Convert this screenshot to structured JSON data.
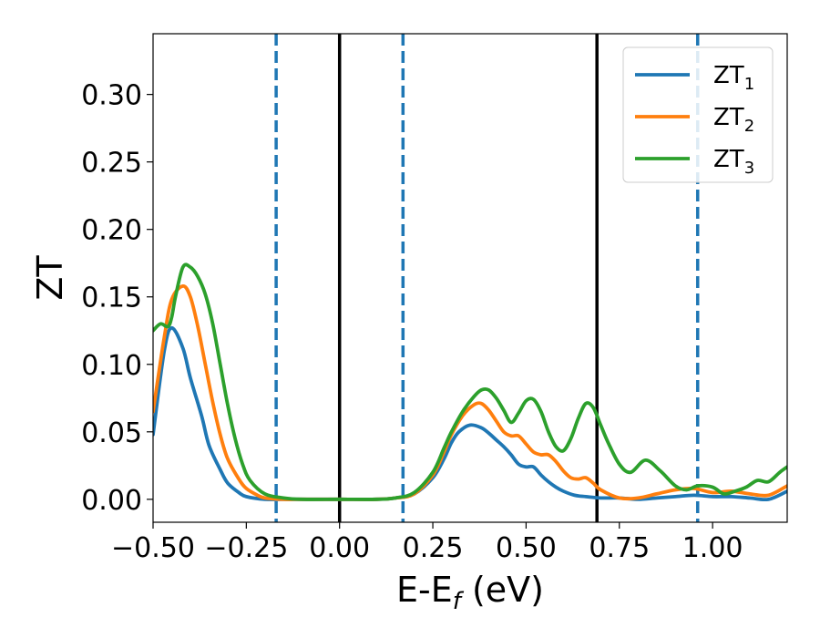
{
  "chart_data": {
    "type": "line",
    "xlabel_main": "E-E",
    "xlabel_sub": "f",
    "xlabel_unit": " (eV)",
    "ylabel": "ZT",
    "xlim": [
      -0.5,
      1.2
    ],
    "ylim": [
      -0.017,
      0.345
    ],
    "x_ticks": [
      -0.5,
      -0.25,
      0.0,
      0.25,
      0.5,
      0.75,
      1.0
    ],
    "x_tick_labels": [
      "−0.50",
      "−0.25",
      "0.00",
      "0.25",
      "0.50",
      "0.75",
      "1.00"
    ],
    "y_ticks": [
      0.0,
      0.05,
      0.1,
      0.15,
      0.2,
      0.25,
      0.3
    ],
    "y_tick_labels": [
      "0.00",
      "0.05",
      "0.10",
      "0.15",
      "0.20",
      "0.25",
      "0.30"
    ],
    "grid": false,
    "legend_position": "top-right",
    "series": [
      {
        "name": "ZT",
        "sub": "1",
        "color": "#1f77b4",
        "x": [
          -0.5,
          -0.47,
          -0.45,
          -0.42,
          -0.4,
          -0.37,
          -0.35,
          -0.32,
          -0.3,
          -0.27,
          -0.25,
          -0.2,
          -0.15,
          -0.1,
          0.0,
          0.1,
          0.15,
          0.2,
          0.25,
          0.28,
          0.3,
          0.32,
          0.35,
          0.38,
          0.4,
          0.42,
          0.44,
          0.46,
          0.48,
          0.5,
          0.52,
          0.54,
          0.56,
          0.58,
          0.6,
          0.63,
          0.66,
          0.7,
          0.75,
          0.8,
          0.85,
          0.9,
          0.95,
          1.0,
          1.05,
          1.1,
          1.15,
          1.2
        ],
        "y": [
          0.048,
          0.11,
          0.127,
          0.112,
          0.09,
          0.062,
          0.04,
          0.022,
          0.012,
          0.005,
          0.002,
          0.0,
          0.0,
          0.0,
          0.0,
          0.0,
          0.001,
          0.004,
          0.016,
          0.03,
          0.042,
          0.05,
          0.055,
          0.053,
          0.049,
          0.044,
          0.039,
          0.033,
          0.026,
          0.024,
          0.024,
          0.018,
          0.013,
          0.009,
          0.006,
          0.003,
          0.002,
          0.001,
          0.001,
          0.0,
          0.001,
          0.002,
          0.003,
          0.002,
          0.002,
          0.001,
          0.0,
          0.006
        ]
      },
      {
        "name": "ZT",
        "sub": "2",
        "color": "#ff7f0e",
        "x": [
          -0.5,
          -0.47,
          -0.45,
          -0.42,
          -0.4,
          -0.38,
          -0.36,
          -0.34,
          -0.32,
          -0.3,
          -0.27,
          -0.25,
          -0.22,
          -0.2,
          -0.15,
          -0.1,
          0.0,
          0.1,
          0.15,
          0.2,
          0.25,
          0.28,
          0.3,
          0.33,
          0.36,
          0.38,
          0.4,
          0.42,
          0.44,
          0.46,
          0.48,
          0.5,
          0.52,
          0.54,
          0.56,
          0.58,
          0.6,
          0.62,
          0.64,
          0.66,
          0.68,
          0.7,
          0.75,
          0.8,
          0.85,
          0.9,
          0.95,
          1.0,
          1.05,
          1.1,
          1.15,
          1.2
        ],
        "y": [
          0.065,
          0.12,
          0.148,
          0.158,
          0.15,
          0.128,
          0.1,
          0.072,
          0.048,
          0.03,
          0.015,
          0.008,
          0.003,
          0.001,
          0.0,
          0.0,
          0.0,
          0.0,
          0.001,
          0.004,
          0.018,
          0.035,
          0.048,
          0.062,
          0.07,
          0.071,
          0.066,
          0.058,
          0.05,
          0.047,
          0.047,
          0.041,
          0.035,
          0.033,
          0.033,
          0.028,
          0.021,
          0.016,
          0.015,
          0.016,
          0.012,
          0.007,
          0.001,
          0.001,
          0.004,
          0.007,
          0.008,
          0.005,
          0.006,
          0.004,
          0.003,
          0.01
        ]
      },
      {
        "name": "ZT",
        "sub": "3",
        "color": "#2ca02c",
        "x": [
          -0.5,
          -0.48,
          -0.46,
          -0.45,
          -0.44,
          -0.42,
          -0.4,
          -0.38,
          -0.36,
          -0.34,
          -0.32,
          -0.3,
          -0.28,
          -0.26,
          -0.24,
          -0.2,
          -0.15,
          -0.1,
          0.0,
          0.1,
          0.15,
          0.2,
          0.25,
          0.28,
          0.3,
          0.33,
          0.36,
          0.38,
          0.4,
          0.42,
          0.44,
          0.46,
          0.48,
          0.5,
          0.52,
          0.54,
          0.56,
          0.58,
          0.6,
          0.62,
          0.64,
          0.66,
          0.68,
          0.7,
          0.72,
          0.75,
          0.78,
          0.82,
          0.86,
          0.9,
          0.93,
          0.96,
          1.0,
          1.03,
          1.06,
          1.09,
          1.12,
          1.15,
          1.18,
          1.2
        ],
        "y": [
          0.125,
          0.13,
          0.128,
          0.135,
          0.15,
          0.172,
          0.172,
          0.165,
          0.152,
          0.13,
          0.1,
          0.07,
          0.045,
          0.026,
          0.014,
          0.004,
          0.001,
          0.0,
          0.0,
          0.0,
          0.001,
          0.005,
          0.02,
          0.038,
          0.05,
          0.065,
          0.076,
          0.081,
          0.081,
          0.075,
          0.066,
          0.057,
          0.064,
          0.073,
          0.074,
          0.065,
          0.05,
          0.039,
          0.036,
          0.045,
          0.06,
          0.071,
          0.068,
          0.055,
          0.042,
          0.026,
          0.02,
          0.029,
          0.021,
          0.01,
          0.007,
          0.01,
          0.009,
          0.004,
          0.006,
          0.009,
          0.014,
          0.013,
          0.02,
          0.024
        ]
      }
    ],
    "vlines": [
      {
        "x": -0.17,
        "style": "dashed",
        "color": "#1f77b4"
      },
      {
        "x": 0.0,
        "style": "solid",
        "color": "#000000"
      },
      {
        "x": 0.17,
        "style": "dashed",
        "color": "#1f77b4"
      },
      {
        "x": 0.69,
        "style": "solid",
        "color": "#000000"
      },
      {
        "x": 0.96,
        "style": "dashed",
        "color": "#1f77b4"
      }
    ]
  }
}
